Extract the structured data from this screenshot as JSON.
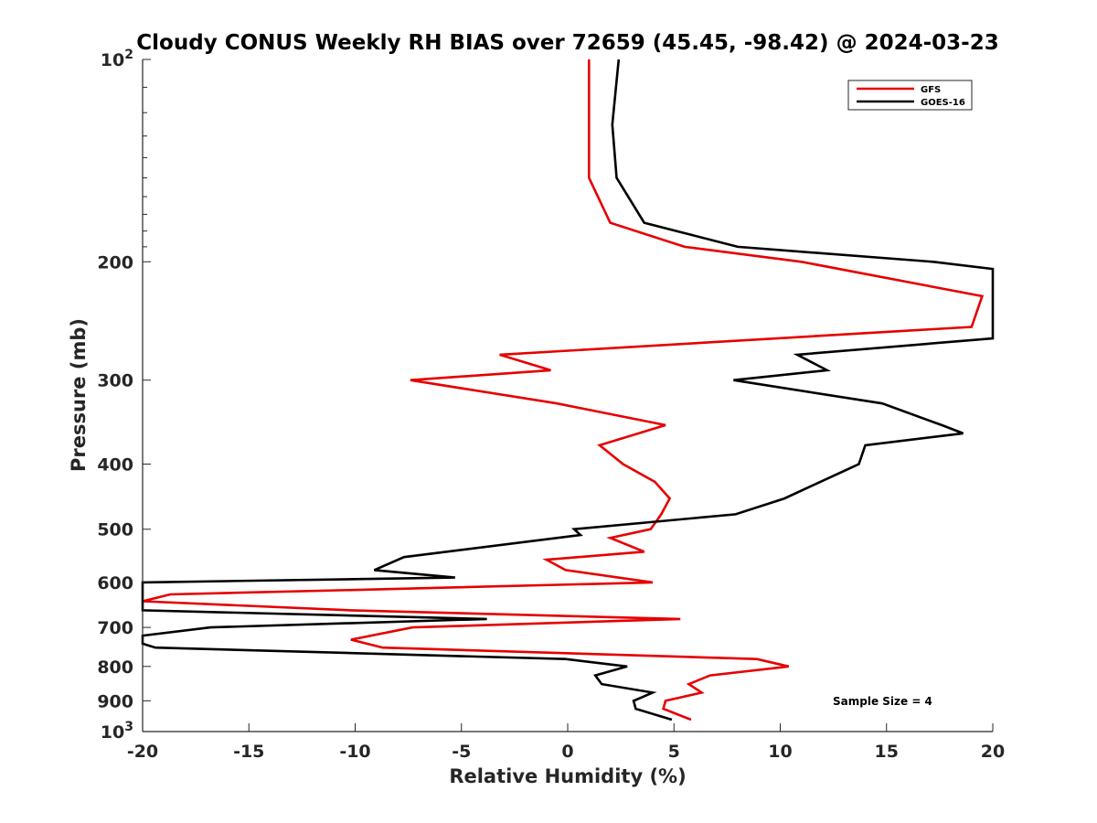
{
  "chart_data": {
    "type": "line",
    "title": "Cloudy CONUS Weekly RH BIAS over 72659 (45.45, -98.42) @ 2024-03-23",
    "xlabel": "Relative Humidity (%)",
    "ylabel": "Pressure (mb)",
    "xlim": [
      -20,
      20
    ],
    "ylim": [
      100,
      1000
    ],
    "y_scale": "log",
    "y_reversed": true,
    "x_ticks": [
      "-20",
      "-15",
      "-10",
      "-5",
      "0",
      "5",
      "10",
      "15",
      "20"
    ],
    "y_ticks": [
      {
        "value": 100,
        "base": "10",
        "exp": "2"
      },
      {
        "value": 200,
        "label": "200"
      },
      {
        "value": 300,
        "label": "300"
      },
      {
        "value": 400,
        "label": "400"
      },
      {
        "value": 500,
        "label": "500"
      },
      {
        "value": 600,
        "label": "600"
      },
      {
        "value": 700,
        "label": "700"
      },
      {
        "value": 800,
        "label": "800"
      },
      {
        "value": 900,
        "label": "900"
      },
      {
        "value": 1000,
        "base": "10",
        "exp": "3"
      }
    ],
    "grid": false,
    "legend_position": "top-right",
    "annotation": "Sample Size = 4",
    "series": [
      {
        "name": "GFS",
        "color": "#e60000",
        "points": [
          [
            1.0,
            100
          ],
          [
            1.0,
            125
          ],
          [
            1.0,
            150
          ],
          [
            2.0,
            175
          ],
          [
            5.5,
            190
          ],
          [
            11.0,
            200
          ],
          [
            19.5,
            225
          ],
          [
            19.0,
            250
          ],
          [
            -3.2,
            275
          ],
          [
            -0.8,
            290
          ],
          [
            -7.4,
            300
          ],
          [
            -0.5,
            325
          ],
          [
            4.6,
            350
          ],
          [
            1.5,
            375
          ],
          [
            2.6,
            400
          ],
          [
            4.1,
            425
          ],
          [
            4.8,
            450
          ],
          [
            4.4,
            475
          ],
          [
            3.9,
            500
          ],
          [
            2.0,
            515
          ],
          [
            3.6,
            540
          ],
          [
            -1.0,
            555
          ],
          [
            -0.1,
            575
          ],
          [
            4.0,
            600
          ],
          [
            -9.5,
            615
          ],
          [
            -18.7,
            625
          ],
          [
            -20.0,
            640
          ],
          [
            -10.2,
            660
          ],
          [
            5.3,
            680
          ],
          [
            -7.3,
            700
          ],
          [
            -10.2,
            730
          ],
          [
            -8.7,
            750
          ],
          [
            8.9,
            780
          ],
          [
            10.4,
            800
          ],
          [
            6.7,
            825
          ],
          [
            5.7,
            850
          ],
          [
            6.3,
            875
          ],
          [
            4.6,
            900
          ],
          [
            4.5,
            925
          ],
          [
            5.8,
            960
          ]
        ]
      },
      {
        "name": "GOES-16",
        "color": "#000000",
        "points": [
          [
            2.4,
            100
          ],
          [
            2.1,
            125
          ],
          [
            2.3,
            150
          ],
          [
            3.6,
            175
          ],
          [
            8.0,
            190
          ],
          [
            17.2,
            200
          ],
          [
            20.0,
            205
          ],
          [
            20.0,
            260
          ],
          [
            10.8,
            275
          ],
          [
            12.2,
            290
          ],
          [
            7.8,
            300
          ],
          [
            14.8,
            325
          ],
          [
            17.6,
            350
          ],
          [
            18.6,
            360
          ],
          [
            14.0,
            375
          ],
          [
            13.7,
            400
          ],
          [
            10.2,
            450
          ],
          [
            7.9,
            475
          ],
          [
            0.3,
            500
          ],
          [
            0.6,
            510
          ],
          [
            -7.7,
            550
          ],
          [
            -9.1,
            575
          ],
          [
            -5.3,
            590
          ],
          [
            -20.0,
            600
          ],
          [
            -20.0,
            640
          ],
          [
            -20.0,
            660
          ],
          [
            -3.8,
            680
          ],
          [
            -16.8,
            700
          ],
          [
            -20.0,
            720
          ],
          [
            -20.0,
            740
          ],
          [
            -19.4,
            750
          ],
          [
            -0.1,
            780
          ],
          [
            2.8,
            800
          ],
          [
            1.3,
            825
          ],
          [
            1.6,
            850
          ],
          [
            4.0,
            875
          ],
          [
            3.1,
            900
          ],
          [
            3.2,
            925
          ],
          [
            4.9,
            960
          ]
        ]
      }
    ]
  }
}
